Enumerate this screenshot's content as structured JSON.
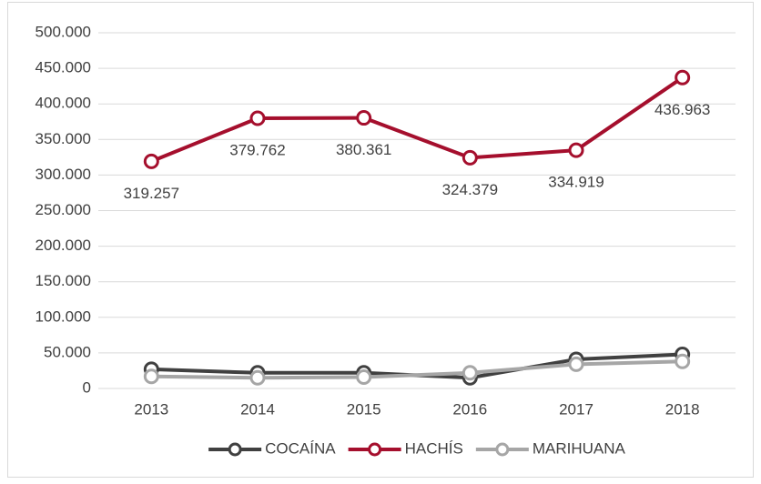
{
  "chart_data": {
    "type": "line",
    "categories": [
      "2013",
      "2014",
      "2015",
      "2016",
      "2017",
      "2018"
    ],
    "series": [
      {
        "name": "COCAÍNA",
        "color": "#404040",
        "values": [
          27000,
          22000,
          22000,
          15000,
          41000,
          48000
        ]
      },
      {
        "name": "HACHÍS",
        "color": "#a50f2d",
        "values": [
          319257,
          379762,
          380361,
          324379,
          334919,
          436963
        ],
        "value_labels": [
          "319.257",
          "379.762",
          "380.361",
          "324.379",
          "334.919",
          "436.963"
        ]
      },
      {
        "name": "MARIHUANA",
        "color": "#a6a6a6",
        "values": [
          17000,
          15000,
          16000,
          22000,
          34000,
          38000
        ]
      }
    ],
    "ylim": [
      0,
      500000
    ],
    "yticks": [
      0,
      {
        "value": 50000,
        "label": "50.000"
      },
      {
        "value": 100000,
        "label": "100.000"
      },
      {
        "value": 150000,
        "label": "150.000"
      },
      {
        "value": 200000,
        "label": "200.000"
      },
      {
        "value": 250000,
        "label": "250.000"
      },
      {
        "value": 300000,
        "label": "300.000"
      },
      {
        "value": 350000,
        "label": "350.000"
      },
      {
        "value": 400000,
        "label": "400.000"
      },
      {
        "value": 450000,
        "label": "450.000"
      },
      {
        "value": 500000,
        "label": "500.000"
      }
    ],
    "grid": true,
    "legend": "bottom"
  }
}
